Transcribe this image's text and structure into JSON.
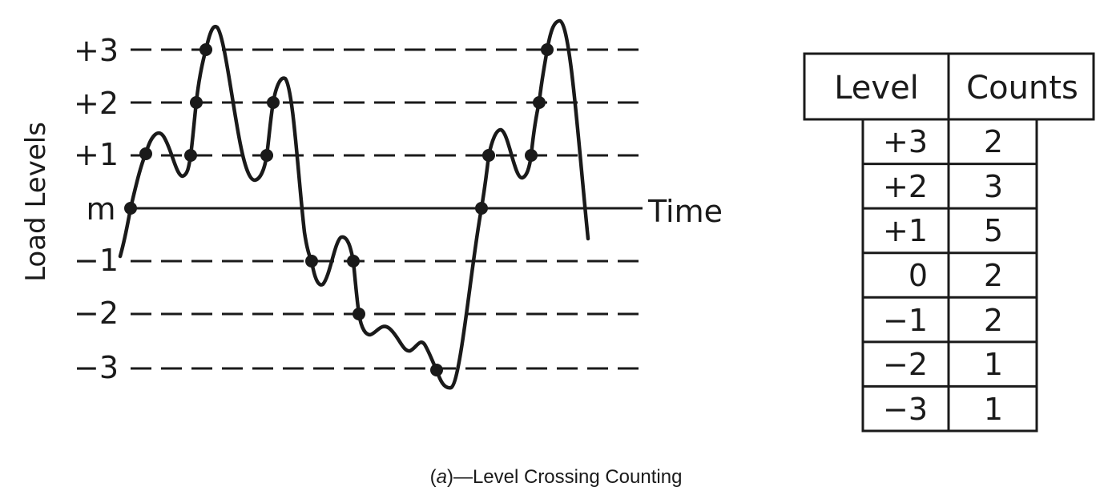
{
  "chart": {
    "ylabel": "Load Levels",
    "xlabel": "Time",
    "levels": [
      "+3",
      "+2",
      "+1",
      "m",
      "−1",
      "−2",
      "−3"
    ]
  },
  "table": {
    "headers": [
      "Level",
      "Counts"
    ],
    "rows": [
      [
        "+3",
        "2"
      ],
      [
        "+2",
        "3"
      ],
      [
        "+1",
        "5"
      ],
      [
        "0",
        "2"
      ],
      [
        "−1",
        "2"
      ],
      [
        "−2",
        "1"
      ],
      [
        "−3",
        "1"
      ]
    ]
  },
  "caption": {
    "tag": "a",
    "text": "—Level Crossing Counting"
  }
}
